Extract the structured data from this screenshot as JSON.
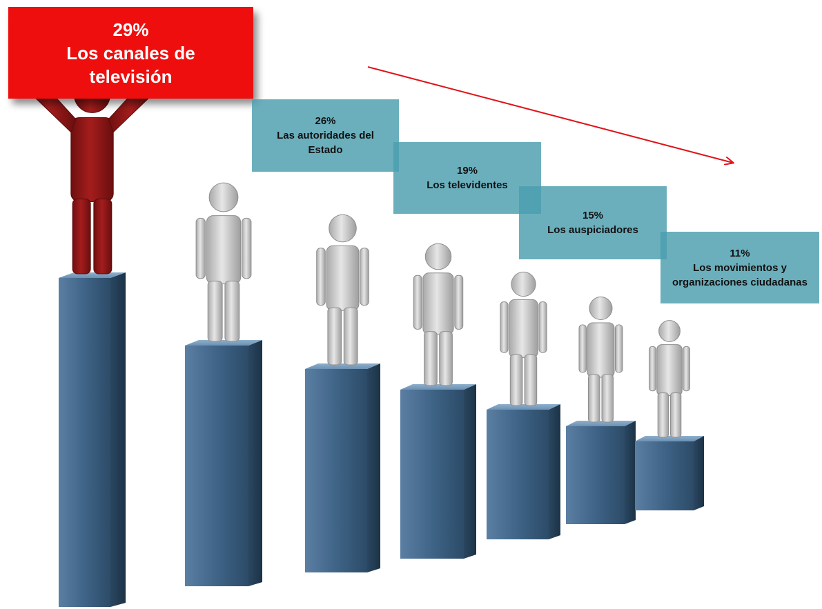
{
  "chart_data": {
    "type": "bar",
    "series": [
      {
        "categories": [
          "Los canales de televisión",
          "Las autoridades del Estado",
          "Los televidentes",
          "Los auspiciadores",
          "Los movimientos y organizaciones ciudadanas"
        ],
        "values": [
          29,
          26,
          19,
          15,
          11
        ]
      }
    ],
    "labels": [
      {
        "pct": "29%",
        "line1": "Los canales de",
        "line2": "televisión"
      },
      {
        "pct": "26%",
        "line1": "Las autoridades del",
        "line2": "Estado"
      },
      {
        "pct": "19%",
        "line1": "Los televidentes",
        "line2": ""
      },
      {
        "pct": "15%",
        "line1": "Los auspiciadores",
        "line2": ""
      },
      {
        "pct": "11%",
        "line1": "Los movimientos y",
        "line2": "organizaciones ciudadanas"
      }
    ],
    "decorative_pedestals": 7,
    "trend_arrow": "descending",
    "colors": {
      "highlight": "#ee0e0e",
      "figure_highlight": "#8a1515",
      "figure_default": "#c8c8c8",
      "pedestal": "#3f6487",
      "label_box": "#4b9daf",
      "arrow": "#e0141a"
    }
  }
}
